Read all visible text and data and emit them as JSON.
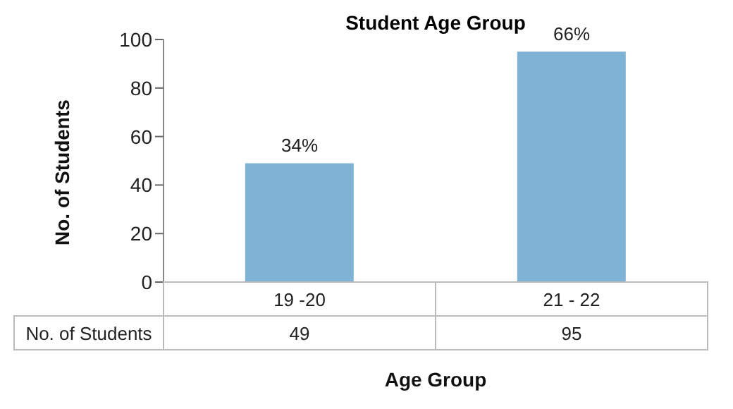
{
  "chart_data": {
    "type": "bar",
    "title": "Student Age Group",
    "xlabel": "Age Group",
    "ylabel": "No. of Students",
    "categories": [
      "19 -20",
      "21 - 22"
    ],
    "series": [
      {
        "name": "No. of Students",
        "color": "#7fb3d5",
        "values": [
          49,
          95
        ],
        "value_labels": [
          "49",
          "95"
        ]
      }
    ],
    "annotations": [
      {
        "text": "34%",
        "x": "19 -20",
        "y": 49
      },
      {
        "text": "66%",
        "x": "21 - 22",
        "y": 95
      }
    ],
    "ylim": [
      0,
      100
    ],
    "yticks": [
      0,
      20,
      40,
      60,
      80,
      100
    ],
    "grid": false,
    "legend": false
  }
}
